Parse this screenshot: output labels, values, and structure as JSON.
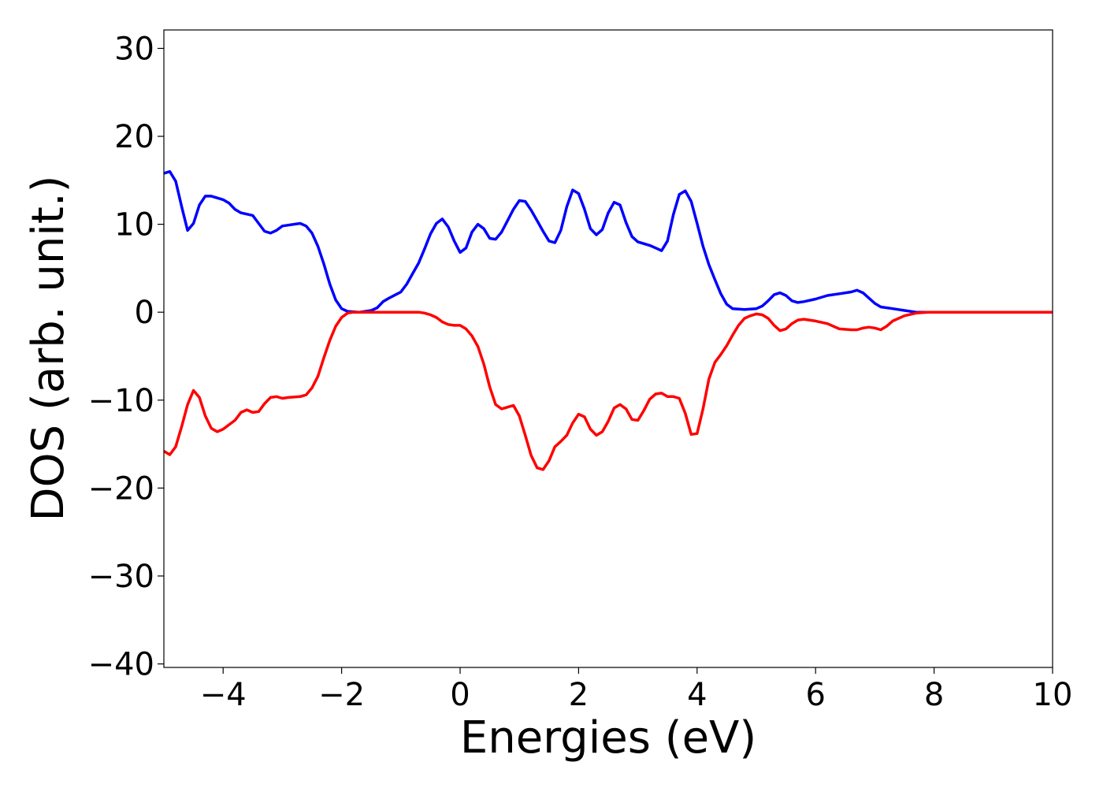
{
  "chart_data": {
    "type": "line",
    "x_label": "Energies (eV)",
    "y_label": "DOS (arb. unit.)",
    "xlim": [
      -5,
      10
    ],
    "ylim": [
      -40.4,
      32.1
    ],
    "xticks": [
      {
        "value": -4,
        "label": "−4"
      },
      {
        "value": -2,
        "label": "−2"
      },
      0,
      2,
      4,
      6,
      8,
      10
    ],
    "yticks": [
      {
        "value": -40,
        "label": "−40"
      },
      {
        "value": -30,
        "label": "−30"
      },
      {
        "value": -20,
        "label": "−20"
      },
      {
        "value": -10,
        "label": "−10"
      },
      0,
      10,
      20,
      30
    ],
    "series": [
      {
        "color": "#0000ff",
        "x": [
          -5,
          -4.9,
          -4.8,
          -4.7,
          -4.6,
          -4.5,
          -4.4,
          -4.3,
          -4.2,
          -4,
          -3.9,
          -3.8,
          -3.7,
          -3.5,
          -3.4,
          -3.3,
          -3.2,
          -3.1,
          -3,
          -2.9,
          -2.7,
          -2.6,
          -2.5,
          -2.4,
          -2.3,
          -2.2,
          -2.1,
          -2,
          -1.9,
          -1.7,
          -1.5,
          -1.4,
          -1.3,
          -1.2,
          -1,
          -0.9,
          -0.8,
          -0.7,
          -0.6,
          -0.5,
          -0.4,
          -0.3,
          -0.2,
          -0.1,
          0,
          0.1,
          0.2,
          0.3,
          0.4,
          0.5,
          0.6,
          0.7,
          0.8,
          0.9,
          1,
          1.1,
          1.2,
          1.3,
          1.4,
          1.5,
          1.6,
          1.7,
          1.8,
          1.9,
          2,
          2.1,
          2.2,
          2.3,
          2.4,
          2.5,
          2.6,
          2.7,
          2.8,
          2.9,
          3,
          3.1,
          3.2,
          3.3,
          3.4,
          3.5,
          3.6,
          3.7,
          3.8,
          3.9,
          4,
          4.1,
          4.2,
          4.3,
          4.4,
          4.5,
          4.6,
          4.8,
          5,
          5.1,
          5.2,
          5.3,
          5.4,
          5.5,
          5.6,
          5.7,
          5.8,
          6,
          6.2,
          6.4,
          6.6,
          6.7,
          6.8,
          6.9,
          7,
          7.1,
          7.3,
          7.5,
          7.7,
          8,
          10
        ],
        "values": [
          15.8,
          16,
          14.9,
          12,
          9.3,
          10.1,
          12.2,
          13.2,
          13.2,
          12.8,
          12.4,
          11.7,
          11.3,
          11,
          10.1,
          9.2,
          9,
          9.3,
          9.8,
          9.9,
          10.1,
          9.8,
          9,
          7.5,
          5.5,
          3.2,
          1.4,
          0.4,
          0.1,
          0,
          0.2,
          0.5,
          1.2,
          1.6,
          2.3,
          3.2,
          4.4,
          5.6,
          7.2,
          8.9,
          10.1,
          10.6,
          9.7,
          8.1,
          6.8,
          7.3,
          9.1,
          10,
          9.5,
          8.4,
          8.3,
          9.1,
          10.4,
          11.7,
          12.7,
          12.6,
          11.6,
          10.4,
          9.2,
          8.1,
          7.9,
          9.3,
          12,
          13.9,
          13.5,
          11.7,
          9.5,
          8.8,
          9.4,
          11.3,
          12.5,
          12.2,
          10.2,
          8.6,
          8,
          7.8,
          7.6,
          7.3,
          7,
          8.1,
          11.1,
          13.4,
          13.8,
          12.6,
          10.1,
          7.5,
          5.4,
          3.7,
          2.1,
          0.9,
          0.4,
          0.3,
          0.4,
          0.7,
          1.3,
          2,
          2.2,
          1.9,
          1.3,
          1.1,
          1.2,
          1.5,
          1.9,
          2.1,
          2.3,
          2.5,
          2.2,
          1.6,
          1,
          0.6,
          0.4,
          0.2,
          0,
          0,
          0
        ]
      },
      {
        "color": "#ff0000",
        "x": [
          -5,
          -4.9,
          -4.8,
          -4.7,
          -4.6,
          -4.5,
          -4.4,
          -4.3,
          -4.2,
          -4.1,
          -4,
          -3.8,
          -3.7,
          -3.6,
          -3.5,
          -3.4,
          -3.3,
          -3.2,
          -3.1,
          -3,
          -2.9,
          -2.7,
          -2.6,
          -2.5,
          -2.4,
          -2.3,
          -2.2,
          -2.1,
          -2,
          -1.9,
          -1.8,
          -0.7,
          -0.6,
          -0.5,
          -0.4,
          -0.3,
          -0.2,
          -0.1,
          0,
          0.1,
          0.2,
          0.3,
          0.4,
          0.5,
          0.6,
          0.7,
          0.8,
          0.9,
          1,
          1.1,
          1.2,
          1.3,
          1.4,
          1.5,
          1.6,
          1.7,
          1.8,
          1.9,
          2,
          2.1,
          2.2,
          2.3,
          2.4,
          2.5,
          2.6,
          2.7,
          2.8,
          2.9,
          3,
          3.1,
          3.2,
          3.3,
          3.4,
          3.5,
          3.6,
          3.7,
          3.8,
          3.9,
          4,
          4.1,
          4.2,
          4.3,
          4.4,
          4.5,
          4.6,
          4.7,
          4.8,
          4.9,
          5,
          5.1,
          5.2,
          5.3,
          5.4,
          5.5,
          5.6,
          5.7,
          5.8,
          6,
          6.2,
          6.4,
          6.6,
          6.7,
          6.8,
          6.9,
          7,
          7.1,
          7.2,
          7.3,
          7.5,
          7.7,
          7.9,
          10
        ],
        "values": [
          -15.8,
          -16.2,
          -15.3,
          -13,
          -10.5,
          -8.9,
          -9.7,
          -11.8,
          -13.2,
          -13.6,
          -13.3,
          -12.3,
          -11.4,
          -11.1,
          -11.4,
          -11.3,
          -10.4,
          -9.7,
          -9.6,
          -9.8,
          -9.7,
          -9.6,
          -9.4,
          -8.6,
          -7.3,
          -5.2,
          -3.2,
          -1.6,
          -0.6,
          -0.1,
          0,
          0,
          -0.1,
          -0.3,
          -0.6,
          -1.1,
          -1.4,
          -1.5,
          -1.5,
          -1.9,
          -2.7,
          -3.9,
          -5.9,
          -8.5,
          -10.5,
          -11,
          -10.8,
          -10.6,
          -11.8,
          -14,
          -16.3,
          -17.7,
          -17.9,
          -16.9,
          -15.3,
          -14.7,
          -14,
          -12.6,
          -11.6,
          -11.9,
          -13.3,
          -14,
          -13.6,
          -12.4,
          -10.9,
          -10.5,
          -11,
          -12.2,
          -12.3,
          -11.2,
          -9.9,
          -9.3,
          -9.2,
          -9.6,
          -9.6,
          -9.8,
          -11.5,
          -13.9,
          -13.8,
          -11,
          -7.6,
          -5.7,
          -4.8,
          -3.8,
          -2.6,
          -1.5,
          -0.7,
          -0.4,
          -0.2,
          -0.3,
          -0.7,
          -1.5,
          -2.1,
          -1.9,
          -1.3,
          -0.9,
          -0.8,
          -1,
          -1.3,
          -1.9,
          -2,
          -2,
          -1.8,
          -1.7,
          -1.8,
          -2,
          -1.6,
          -1,
          -0.4,
          -0.1,
          0,
          0
        ]
      }
    ]
  }
}
